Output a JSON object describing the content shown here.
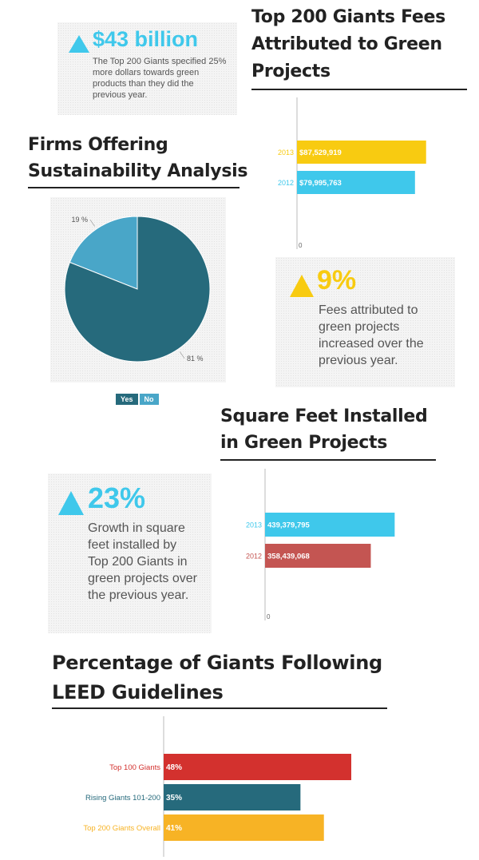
{
  "colors": {
    "blue": "#3fc8eb",
    "pie_blue": "#49a6c8",
    "teal": "#266a7c",
    "yellow": "#f8cb11",
    "red": "#c45552",
    "bright_red": "#d3312e",
    "amber": "#f7b325"
  },
  "stat_43b": {
    "value": "$43 billion",
    "text": "The Top 200 Giants specified 25% more dollars towards green products than they did the previous year."
  },
  "fees": {
    "title": "Top 200 Giants Fees Attributed to Green Projects"
  },
  "sustainability": {
    "title": "Firms Offering Sustainability Analysis"
  },
  "stat_9": {
    "value": "9%",
    "text": "Fees attributed to green projects increased over the previous year."
  },
  "sqft": {
    "title": "Square Feet Installed in Green Projects"
  },
  "stat_23": {
    "value": "23%",
    "text": "Growth in square feet installed by Top 200 Giants in green projects over the previous year."
  },
  "leed": {
    "title": "Percentage of Giants Following LEED Guidelines"
  },
  "chart_data": [
    {
      "id": "fees",
      "type": "bar",
      "orientation": "horizontal",
      "title": "Top 200 Giants Fees Attributed to Green Projects",
      "categories": [
        "2013",
        "2012"
      ],
      "values": [
        87529919,
        79995763
      ],
      "value_labels": [
        "$87,529,919",
        "$79,995,763"
      ],
      "colors": [
        "#f8cb11",
        "#3fc8eb"
      ],
      "xlim": [
        0,
        92000000
      ],
      "zero_label": "0"
    },
    {
      "id": "sustainability",
      "type": "pie",
      "title": "Firms Offering Sustainability Analysis",
      "labels": [
        "Yes",
        "No"
      ],
      "values": [
        81,
        19
      ],
      "value_labels": [
        "81 %",
        "19 %"
      ],
      "colors": [
        "#266a7c",
        "#49a6c8"
      ],
      "legend": "bottom"
    },
    {
      "id": "sqft",
      "type": "bar",
      "orientation": "horizontal",
      "title": "Square Feet Installed in Green Projects",
      "categories": [
        "2013",
        "2012"
      ],
      "values": [
        439379795,
        358439068
      ],
      "value_labels": [
        "439,379,795",
        "358,439,068"
      ],
      "colors": [
        "#3fc8eb",
        "#c45552"
      ],
      "xlim": [
        0,
        460000000
      ],
      "zero_label": "0"
    },
    {
      "id": "leed",
      "type": "bar",
      "orientation": "horizontal",
      "title": "Percentage of Giants Following LEED Guidelines",
      "categories": [
        "Top 100 Giants",
        "Rising Giants 101-200",
        "Top 200 Giants Overall"
      ],
      "values": [
        48,
        35,
        41
      ],
      "value_labels": [
        "48%",
        "35%",
        "41%"
      ],
      "colors": [
        "#d3312e",
        "#266a7c",
        "#f7b325"
      ],
      "xlim": [
        0,
        48
      ]
    }
  ]
}
